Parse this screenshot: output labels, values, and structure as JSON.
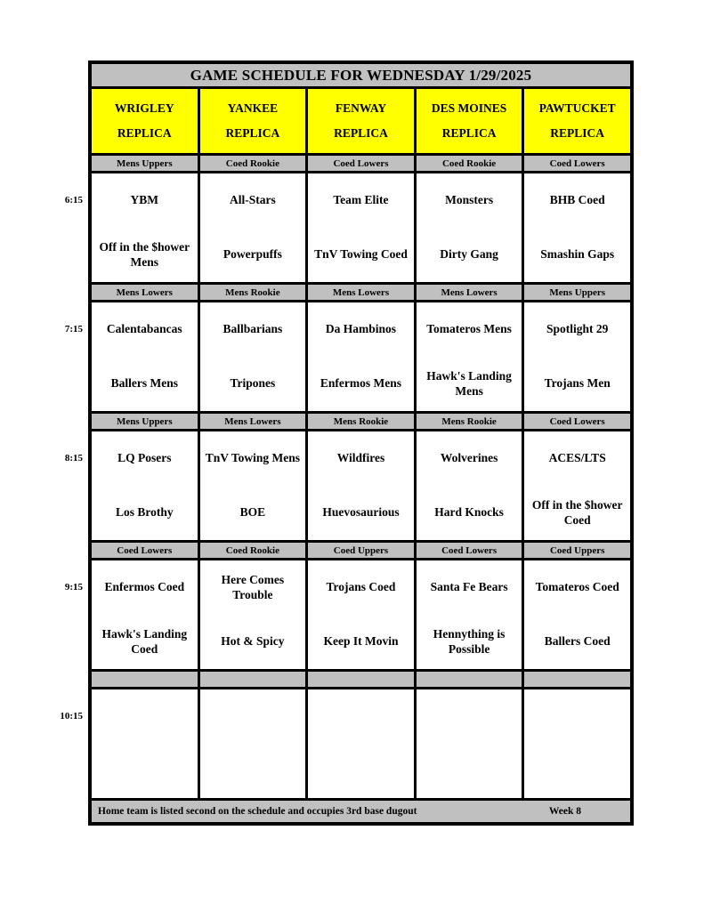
{
  "title": "GAME SCHEDULE FOR WEDNESDAY 1/29/2025",
  "fields": [
    {
      "name": "WRIGLEY",
      "type": "REPLICA"
    },
    {
      "name": "YANKEE",
      "type": "REPLICA"
    },
    {
      "name": "FENWAY",
      "type": "REPLICA"
    },
    {
      "name": "DES MOINES",
      "type": "REPLICA"
    },
    {
      "name": "PAWTUCKET",
      "type": "REPLICA"
    }
  ],
  "blocks": [
    {
      "time": "6:15",
      "games": [
        {
          "league": "Mens Uppers",
          "away": "YBM",
          "home": "Off in the $hower Mens"
        },
        {
          "league": "Coed Rookie",
          "away": "All-Stars",
          "home": "Powerpuffs"
        },
        {
          "league": "Coed Lowers",
          "away": "Team Elite",
          "home": "TnV Towing Coed"
        },
        {
          "league": "Coed Rookie",
          "away": "Monsters",
          "home": "Dirty Gang"
        },
        {
          "league": "Coed Lowers",
          "away": "BHB Coed",
          "home": "Smashin Gaps"
        }
      ]
    },
    {
      "time": "7:15",
      "games": [
        {
          "league": "Mens Lowers",
          "away": "Calentabancas",
          "home": "Ballers Mens"
        },
        {
          "league": "Mens Rookie",
          "away": "Ballbarians",
          "home": "Tripones"
        },
        {
          "league": "Mens Lowers",
          "away": "Da Hambinos",
          "home": "Enfermos Mens"
        },
        {
          "league": "Mens Lowers",
          "away": "Tomateros Mens",
          "home": "Hawk's Landing Mens"
        },
        {
          "league": "Mens Uppers",
          "away": "Spotlight 29",
          "home": "Trojans Men"
        }
      ]
    },
    {
      "time": "8:15",
      "games": [
        {
          "league": "Mens Uppers",
          "away": "LQ Posers",
          "home": "Los Brothy"
        },
        {
          "league": "Mens Lowers",
          "away": "TnV Towing Mens",
          "home": "BOE"
        },
        {
          "league": "Mens Rookie",
          "away": "Wildfires",
          "home": "Huevosaurious"
        },
        {
          "league": "Mens Rookie",
          "away": "Wolverines",
          "home": "Hard Knocks"
        },
        {
          "league": "Coed Lowers",
          "away": "ACES/LTS",
          "home": "Off in the $hower Coed"
        }
      ]
    },
    {
      "time": "9:15",
      "games": [
        {
          "league": "Coed Lowers",
          "away": "Enfermos Coed",
          "home": "Hawk's Landing Coed"
        },
        {
          "league": "Coed Rookie",
          "away": "Here Comes Trouble",
          "home": "Hot & Spicy"
        },
        {
          "league": "Coed Uppers",
          "away": "Trojans Coed",
          "home": "Keep It Movin"
        },
        {
          "league": "Coed Lowers",
          "away": "Santa Fe Bears",
          "home": "Hennything is Possible"
        },
        {
          "league": "Coed Uppers",
          "away": "Tomateros Coed",
          "home": "Ballers Coed"
        }
      ]
    },
    {
      "time": "10:15",
      "games": [
        {
          "league": "",
          "away": "",
          "home": ""
        },
        {
          "league": "",
          "away": "",
          "home": ""
        },
        {
          "league": "",
          "away": "",
          "home": ""
        },
        {
          "league": "",
          "away": "",
          "home": ""
        },
        {
          "league": "",
          "away": "",
          "home": ""
        }
      ]
    }
  ],
  "footer": {
    "note": "Home team is listed second on the schedule and occupies 3rd base dugout",
    "week": "Week 8"
  },
  "colors": {
    "header_bg": "#ffff00",
    "bar_bg": "#c0c0c0",
    "border": "#000000",
    "text": "#000000"
  }
}
